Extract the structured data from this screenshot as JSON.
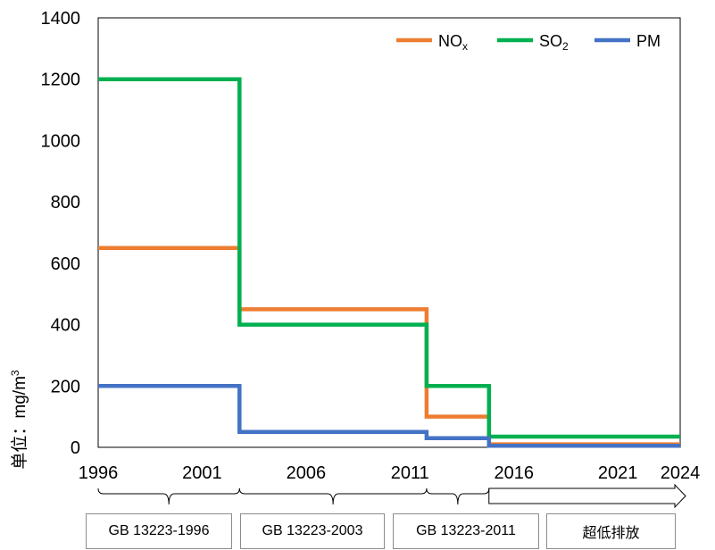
{
  "chart_data": {
    "type": "line",
    "step": true,
    "ylabel": "单位：mg/m³",
    "ylabel_parts": {
      "main": "单位：mg/m",
      "superscript": "3"
    },
    "ylim": [
      0,
      1400
    ],
    "yticks": [
      0,
      200,
      400,
      600,
      800,
      1000,
      1200,
      1400
    ],
    "xlim": [
      1996,
      2024
    ],
    "xticks": [
      1996,
      2001,
      2006,
      2011,
      2016,
      2021,
      2024
    ],
    "grid": false,
    "legend_position": "top-right",
    "series": [
      {
        "name": "NOx",
        "label_main": "NO",
        "label_sub": "x",
        "color": "#ED7D31",
        "points": [
          [
            1996,
            650
          ],
          [
            2002.8,
            650
          ],
          [
            2002.8,
            450
          ],
          [
            2011.8,
            450
          ],
          [
            2011.8,
            100
          ],
          [
            2014.8,
            100
          ],
          [
            2014.8,
            10
          ],
          [
            2024,
            10
          ]
        ]
      },
      {
        "name": "SO2",
        "label_main": "SO",
        "label_sub": "2",
        "color": "#00B050",
        "points": [
          [
            1996,
            1200
          ],
          [
            2002.8,
            1200
          ],
          [
            2002.8,
            400
          ],
          [
            2011.8,
            400
          ],
          [
            2011.8,
            200
          ],
          [
            2014.8,
            200
          ],
          [
            2014.8,
            35
          ],
          [
            2024,
            35
          ]
        ]
      },
      {
        "name": "PM",
        "label_main": "PM",
        "label_sub": "",
        "color": "#4472C4",
        "points": [
          [
            1996,
            200
          ],
          [
            2002.8,
            200
          ],
          [
            2002.8,
            50
          ],
          [
            2011.8,
            50
          ],
          [
            2011.8,
            30
          ],
          [
            2014.8,
            30
          ],
          [
            2014.8,
            5
          ],
          [
            2024,
            5
          ]
        ]
      }
    ],
    "periods": [
      {
        "label": "GB 13223-1996",
        "start": 1996,
        "end": 2002.8
      },
      {
        "label": "GB 13223-2003",
        "start": 2002.8,
        "end": 2011.8
      },
      {
        "label": "GB 13223-2011",
        "start": 2011.8,
        "end": 2014.8
      },
      {
        "label": "超低排放",
        "start": 2014.8,
        "end": 2024,
        "arrow": true
      }
    ]
  }
}
